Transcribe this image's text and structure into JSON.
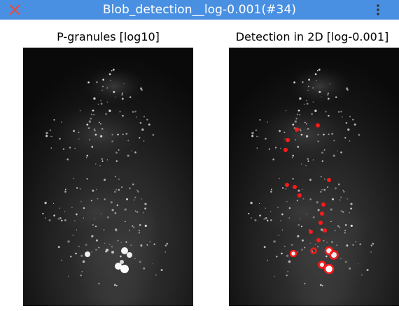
{
  "window": {
    "title": "Blob_detection__log-0.001(#34)",
    "close_icon": "close-icon",
    "menu_icon": "kebab-menu-icon",
    "accent": "#4a90e2",
    "close_color": "#e84c3d"
  },
  "panels": {
    "left": {
      "title": "P-granules [log10]"
    },
    "right": {
      "title": "Detection in 2D [log-0.001]"
    }
  },
  "detections": {
    "marker_color": "#ff1a1a",
    "count": 20
  }
}
